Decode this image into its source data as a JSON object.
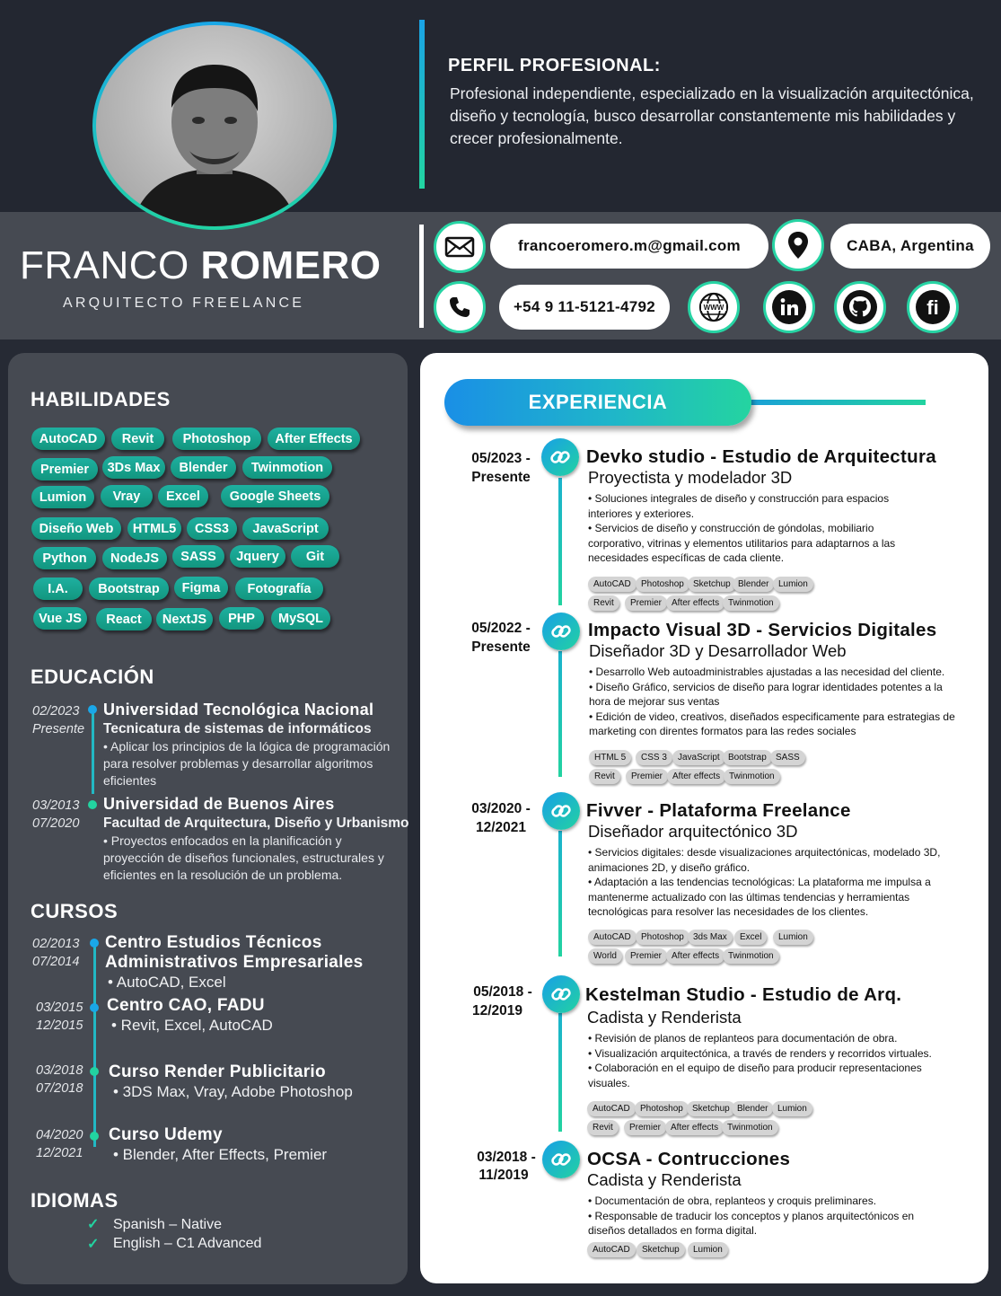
{
  "header": {
    "profile_title": "PERFIL PROFESIONAL:",
    "profile_text": "Profesional independiente, especializado en la visualización arquitectónica, diseño y tecnología, busco desarrollar constantemente mis habilidades y crecer profesionalmente.",
    "first_name": "FRANCO",
    "last_name": "ROMERO",
    "job_title": "ARQUITECTO FREELANCE"
  },
  "contact": {
    "email": "francoeromero.m@gmail.com",
    "location": "CABA, Argentina",
    "phone": "+54 9 11-5121-4792",
    "icons": [
      "mail-icon",
      "location-icon",
      "phone-icon",
      "web-icon",
      "linkedin-icon",
      "github-icon",
      "fiverr-icon"
    ],
    "accent": "#22d3a0"
  },
  "skills": {
    "title": "HABILIDADES",
    "items": [
      "AutoCAD",
      "Revit",
      "Photoshop",
      "After Effects",
      "Premier",
      "3Ds Max",
      "Blender",
      "Twinmotion",
      "Lumion",
      "Vray",
      "Excel",
      "Google Sheets",
      "Diseño Web",
      "HTML5",
      "CSS3",
      "JavaScript",
      "Python",
      "NodeJS",
      "SASS",
      "Jquery",
      "Git",
      "I.A.",
      "Bootstrap",
      "Figma",
      "Fotografía",
      "Vue JS",
      "React",
      "NextJS",
      "PHP",
      "MySQL"
    ]
  },
  "education": {
    "title": "EDUCACIÓN",
    "items": [
      {
        "date1": "02/2023",
        "date2": "Presente",
        "title": "Universidad Tecnológica Nacional",
        "sub": "Tecnicatura de sistemas de informáticos",
        "body": " • Aplicar los principios de la lógica de programación para resolver problemas y desarrollar algoritmos eficientes"
      },
      {
        "date1": "03/2013",
        "date2": "07/2020",
        "title": "Universidad de Buenos Aires",
        "sub": "Facultad de Arquitectura, Diseño y Urbanismo",
        "body": "  • Proyectos enfocados en la planificación y proyección de diseños funcionales, estructurales y eficientes en la resolución de un problema."
      }
    ]
  },
  "courses": {
    "title": "CURSOS",
    "items": [
      {
        "date1": "02/2013",
        "date2": "07/2014",
        "title1": "Centro Estudios Técnicos",
        "title2": "Administrativos Empresariales",
        "body": "• AutoCAD, Excel"
      },
      {
        "date1": "03/2015",
        "date2": "12/2015",
        "title1": "Centro CAO, FADU",
        "title2": "",
        "body": "• Revit, Excel, AutoCAD"
      },
      {
        "date1": "03/2018",
        "date2": "07/2018",
        "title1": "Curso Render Publicitario",
        "title2": "",
        "body": "• 3DS Max, Vray, Adobe Photoshop"
      },
      {
        "date1": "04/2020",
        "date2": "12/2021",
        "title1": "Curso Udemy",
        "title2": "",
        "body": "• Blender, After Effects, Premier"
      }
    ]
  },
  "languages": {
    "title": "IDIOMAS",
    "items": [
      "Spanish – Native",
      "English – C1 Advanced"
    ]
  },
  "experience": {
    "title": "EXPERIENCIA",
    "items": [
      {
        "date1": "05/2023 -",
        "date2": "Presente",
        "title": "Devko studio - Estudio de Arquitectura",
        "role": "Proyectista y modelador 3D",
        "body": [
          "• Soluciones integrales de diseño y construcción para espacios interiores y exteriores.",
          "• Servicios de diseño y construcción de góndolas, mobiliario corporativo, vitrinas y elementos utilitarios para adaptarnos a las necesidades específicas de cada cliente."
        ],
        "tags1": [
          "AutoCAD",
          "Photoshop",
          "Sketchup",
          "Blender",
          "Lumion"
        ],
        "tags2": [
          "Revit",
          "Premier",
          "After effects",
          "Twinmotion"
        ]
      },
      {
        "date1": "05/2022 -",
        "date2": "Presente",
        "title": "Impacto Visual 3D - Servicios Digitales",
        "role": "Diseñador 3D y Desarrollador Web",
        "body": [
          "• Desarrollo Web autoadministrables ajustadas a las necesidad del cliente.",
          "• Diseño Gráfico, servicios de diseño para lograr identidades potentes a la hora de mejorar sus ventas",
          "• Edición de video, creativos, diseñados especificamente para estrategias de marketing con direntes formatos para las redes sociales"
        ],
        "tags1": [
          "HTML 5",
          "CSS 3",
          "JavaScript",
          "Bootstrap",
          "SASS"
        ],
        "tags2": [
          "Revit",
          "Premier",
          "After effects",
          "Twinmotion"
        ]
      },
      {
        "date1": "03/2020 -",
        "date2": "12/2021",
        "title": "Fivver - Plataforma Freelance",
        "role": "Diseñador arquitectónico 3D",
        "body": [
          "• Servicios digitales: desde visualizaciones arquitectónicas, modelado 3D, animaciones 2D, y diseño gráfico.",
          "• Adaptación a las tendencias tecnológicas: La plataforma me impulsa a mantenerme actualizado con las últimas tendencias y herramientas tecnológicas para resolver las necesidades de los clientes."
        ],
        "tags1": [
          "AutoCAD",
          "Photoshop",
          "3ds Max",
          "Excel",
          "Lumion"
        ],
        "tags2": [
          "World",
          "Premier",
          "After effects",
          "Twinmotion"
        ]
      },
      {
        "date1": "05/2018 -",
        "date2": "12/2019",
        "title": "Kestelman Studio - Estudio de Arq.",
        "role": "Cadista y Renderista",
        "body": [
          "• Revisión de planos de replanteos para documentación de obra.",
          "• Visualización arquitectónica, a través de renders y recorridos virtuales.",
          "• Colaboración en el equipo de diseño para producir representaciones visuales."
        ],
        "tags1": [
          "AutoCAD",
          "Photoshop",
          "Sketchup",
          "Blender",
          "Lumion"
        ],
        "tags2": [
          "Revit",
          "Premier",
          "After effects",
          "Twinmotion"
        ]
      },
      {
        "date1": "03/2018 -",
        "date2": "11/2019",
        "title": "OCSA - Contrucciones",
        "role": "Cadista y Renderista",
        "body": [
          "• Documentación de obra, replanteos y croquis preliminares.",
          "• Responsable de traducir los conceptos y planos arquitectónicos en diseños detallados en forma digital."
        ],
        "tags1": [
          "AutoCAD",
          "Sketchup",
          "Lumion"
        ],
        "tags2": []
      }
    ]
  }
}
